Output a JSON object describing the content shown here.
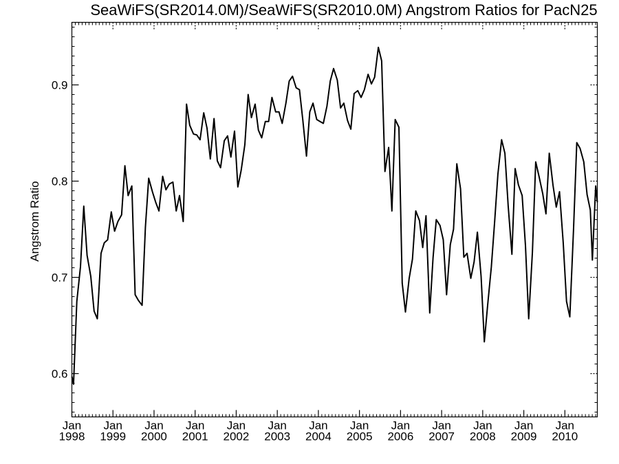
{
  "chart_data": {
    "type": "line",
    "title": "SeaWiFS(SR2014.0M)/SeaWiFS(SR2010.0M)  Angstrom Ratios for PacN25",
    "ylabel": "Angstrom Ratio",
    "xlabel": "",
    "ylim": [
      0.555,
      0.965
    ],
    "xlim": [
      1998.0,
      2010.79
    ],
    "yticks": [
      0.6,
      0.7,
      0.8,
      0.9
    ],
    "ytick_labels": [
      "0.6",
      "0.7",
      "0.8",
      "0.9"
    ],
    "xticks": [
      {
        "x": 1998.0,
        "month": "Jan",
        "year": "1998"
      },
      {
        "x": 1999.0,
        "month": "Jan",
        "year": "1999"
      },
      {
        "x": 2000.0,
        "month": "Jan",
        "year": "2000"
      },
      {
        "x": 2001.0,
        "month": "Jan",
        "year": "2001"
      },
      {
        "x": 2002.0,
        "month": "Jan",
        "year": "2002"
      },
      {
        "x": 2003.0,
        "month": "Jan",
        "year": "2003"
      },
      {
        "x": 2004.0,
        "month": "Jan",
        "year": "2004"
      },
      {
        "x": 2005.0,
        "month": "Jan",
        "year": "2005"
      },
      {
        "x": 2006.0,
        "month": "Jan",
        "year": "2006"
      },
      {
        "x": 2007.0,
        "month": "Jan",
        "year": "2007"
      },
      {
        "x": 2008.0,
        "month": "Jan",
        "year": "2008"
      },
      {
        "x": 2009.0,
        "month": "Jan",
        "year": "2009"
      },
      {
        "x": 2010.0,
        "month": "Jan",
        "year": "2010"
      }
    ],
    "grid": false,
    "series": [
      {
        "color": "#000000",
        "points": [
          [
            1998.0,
            0.597
          ],
          [
            1998.04,
            0.589
          ],
          [
            1998.12,
            0.675
          ],
          [
            1998.21,
            0.711
          ],
          [
            1998.29,
            0.774
          ],
          [
            1998.37,
            0.723
          ],
          [
            1998.46,
            0.701
          ],
          [
            1998.54,
            0.665
          ],
          [
            1998.62,
            0.657
          ],
          [
            1998.71,
            0.725
          ],
          [
            1998.79,
            0.736
          ],
          [
            1998.87,
            0.739
          ],
          [
            1998.96,
            0.768
          ],
          [
            1999.04,
            0.748
          ],
          [
            1999.12,
            0.758
          ],
          [
            1999.21,
            0.765
          ],
          [
            1999.29,
            0.816
          ],
          [
            1999.37,
            0.785
          ],
          [
            1999.46,
            0.795
          ],
          [
            1999.54,
            0.682
          ],
          [
            1999.62,
            0.676
          ],
          [
            1999.71,
            0.671
          ],
          [
            1999.79,
            0.752
          ],
          [
            1999.87,
            0.803
          ],
          [
            1999.96,
            0.789
          ],
          [
            2000.04,
            0.778
          ],
          [
            2000.12,
            0.769
          ],
          [
            2000.21,
            0.805
          ],
          [
            2000.29,
            0.791
          ],
          [
            2000.37,
            0.797
          ],
          [
            2000.46,
            0.799
          ],
          [
            2000.54,
            0.769
          ],
          [
            2000.62,
            0.785
          ],
          [
            2000.71,
            0.758
          ],
          [
            2000.79,
            0.88
          ],
          [
            2000.87,
            0.858
          ],
          [
            2000.96,
            0.849
          ],
          [
            2001.04,
            0.848
          ],
          [
            2001.12,
            0.843
          ],
          [
            2001.21,
            0.871
          ],
          [
            2001.29,
            0.855
          ],
          [
            2001.37,
            0.823
          ],
          [
            2001.46,
            0.865
          ],
          [
            2001.54,
            0.821
          ],
          [
            2001.62,
            0.814
          ],
          [
            2001.71,
            0.842
          ],
          [
            2001.79,
            0.847
          ],
          [
            2001.87,
            0.825
          ],
          [
            2001.96,
            0.852
          ],
          [
            2002.04,
            0.794
          ],
          [
            2002.12,
            0.811
          ],
          [
            2002.21,
            0.838
          ],
          [
            2002.29,
            0.89
          ],
          [
            2002.37,
            0.866
          ],
          [
            2002.46,
            0.88
          ],
          [
            2002.54,
            0.853
          ],
          [
            2002.62,
            0.845
          ],
          [
            2002.71,
            0.862
          ],
          [
            2002.79,
            0.862
          ],
          [
            2002.87,
            0.887
          ],
          [
            2002.96,
            0.872
          ],
          [
            2003.04,
            0.872
          ],
          [
            2003.12,
            0.86
          ],
          [
            2003.21,
            0.881
          ],
          [
            2003.29,
            0.904
          ],
          [
            2003.37,
            0.909
          ],
          [
            2003.46,
            0.897
          ],
          [
            2003.54,
            0.895
          ],
          [
            2003.62,
            0.864
          ],
          [
            2003.71,
            0.826
          ],
          [
            2003.79,
            0.872
          ],
          [
            2003.87,
            0.881
          ],
          [
            2003.96,
            0.864
          ],
          [
            2004.04,
            0.862
          ],
          [
            2004.12,
            0.86
          ],
          [
            2004.21,
            0.878
          ],
          [
            2004.29,
            0.904
          ],
          [
            2004.37,
            0.917
          ],
          [
            2004.46,
            0.905
          ],
          [
            2004.54,
            0.876
          ],
          [
            2004.62,
            0.881
          ],
          [
            2004.71,
            0.863
          ],
          [
            2004.79,
            0.854
          ],
          [
            2004.87,
            0.891
          ],
          [
            2004.96,
            0.894
          ],
          [
            2005.04,
            0.887
          ],
          [
            2005.12,
            0.895
          ],
          [
            2005.21,
            0.911
          ],
          [
            2005.29,
            0.901
          ],
          [
            2005.37,
            0.908
          ],
          [
            2005.46,
            0.939
          ],
          [
            2005.54,
            0.925
          ],
          [
            2005.62,
            0.81
          ],
          [
            2005.71,
            0.835
          ],
          [
            2005.79,
            0.769
          ],
          [
            2005.87,
            0.864
          ],
          [
            2005.96,
            0.856
          ],
          [
            2006.04,
            0.694
          ],
          [
            2006.12,
            0.664
          ],
          [
            2006.21,
            0.699
          ],
          [
            2006.29,
            0.719
          ],
          [
            2006.37,
            0.769
          ],
          [
            2006.46,
            0.759
          ],
          [
            2006.54,
            0.731
          ],
          [
            2006.62,
            0.764
          ],
          [
            2006.71,
            0.663
          ],
          [
            2006.79,
            0.72
          ],
          [
            2006.87,
            0.76
          ],
          [
            2006.96,
            0.754
          ],
          [
            2007.04,
            0.739
          ],
          [
            2007.12,
            0.682
          ],
          [
            2007.21,
            0.734
          ],
          [
            2007.29,
            0.75
          ],
          [
            2007.37,
            0.818
          ],
          [
            2007.46,
            0.792
          ],
          [
            2007.54,
            0.721
          ],
          [
            2007.62,
            0.725
          ],
          [
            2007.71,
            0.699
          ],
          [
            2007.79,
            0.716
          ],
          [
            2007.87,
            0.747
          ],
          [
            2007.96,
            0.701
          ],
          [
            2008.04,
            0.633
          ],
          [
            2008.12,
            0.671
          ],
          [
            2008.21,
            0.711
          ],
          [
            2008.29,
            0.758
          ],
          [
            2008.37,
            0.807
          ],
          [
            2008.46,
            0.843
          ],
          [
            2008.54,
            0.829
          ],
          [
            2008.62,
            0.774
          ],
          [
            2008.71,
            0.724
          ],
          [
            2008.79,
            0.813
          ],
          [
            2008.87,
            0.796
          ],
          [
            2008.96,
            0.785
          ],
          [
            2009.04,
            0.733
          ],
          [
            2009.12,
            0.657
          ],
          [
            2009.21,
            0.726
          ],
          [
            2009.29,
            0.82
          ],
          [
            2009.37,
            0.805
          ],
          [
            2009.46,
            0.787
          ],
          [
            2009.54,
            0.766
          ],
          [
            2009.62,
            0.829
          ],
          [
            2009.71,
            0.796
          ],
          [
            2009.79,
            0.773
          ],
          [
            2009.87,
            0.789
          ],
          [
            2009.96,
            0.736
          ],
          [
            2010.04,
            0.675
          ],
          [
            2010.12,
            0.659
          ],
          [
            2010.21,
            0.75
          ],
          [
            2010.29,
            0.84
          ],
          [
            2010.37,
            0.834
          ],
          [
            2010.46,
            0.82
          ],
          [
            2010.54,
            0.786
          ],
          [
            2010.62,
            0.77
          ],
          [
            2010.67,
            0.718
          ],
          [
            2010.75,
            0.795
          ],
          [
            2010.79,
            0.778
          ]
        ]
      }
    ]
  }
}
